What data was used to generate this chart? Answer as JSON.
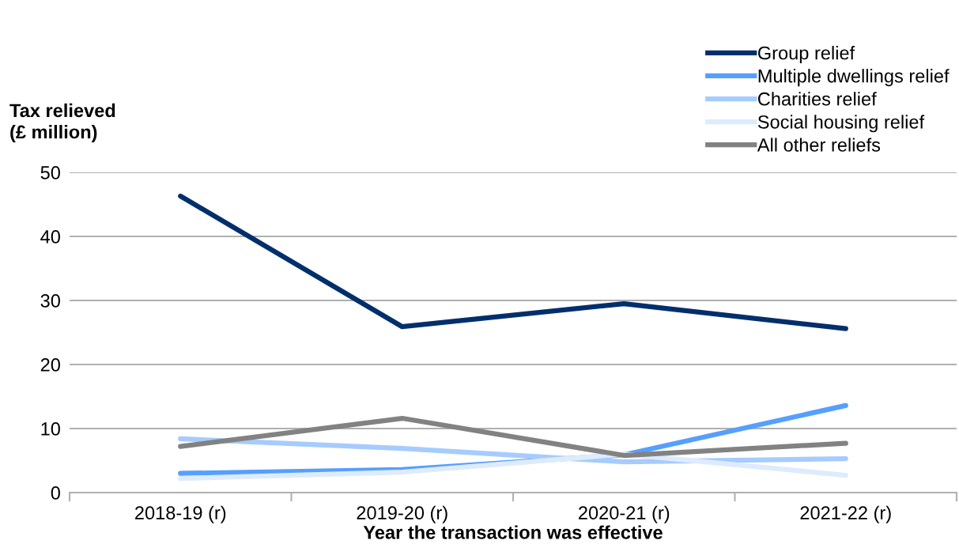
{
  "chart_data": {
    "type": "line",
    "ylabel": "Tax relieved\n(£ million)",
    "xlabel": "Year the transaction was effective",
    "categories": [
      "2018-19 (r)",
      "2019-20 (r)",
      "2020-21 (r)",
      "2021-22 (r)"
    ],
    "series": [
      {
        "name": "Group relief",
        "color": "#002f6c",
        "values": [
          46.3,
          25.9,
          29.5,
          25.6
        ]
      },
      {
        "name": "Multiple dwellings relief",
        "color": "#559fff",
        "values": [
          3.0,
          3.6,
          5.9,
          13.6
        ]
      },
      {
        "name": "Charities relief",
        "color": "#a6cbff",
        "values": [
          8.4,
          6.9,
          4.8,
          5.3
        ]
      },
      {
        "name": "Social housing relief",
        "color": "#deebfd",
        "values": [
          2.2,
          3.2,
          6.0,
          2.7
        ]
      },
      {
        "name": "All other reliefs",
        "color": "#828282",
        "values": [
          7.2,
          11.6,
          5.8,
          7.7
        ]
      }
    ],
    "ylim": [
      0,
      50
    ],
    "yticks": [
      0,
      10,
      20,
      30,
      40,
      50
    ],
    "grid": "y",
    "legend": "top right",
    "marker": "none",
    "line_style": "solid"
  }
}
